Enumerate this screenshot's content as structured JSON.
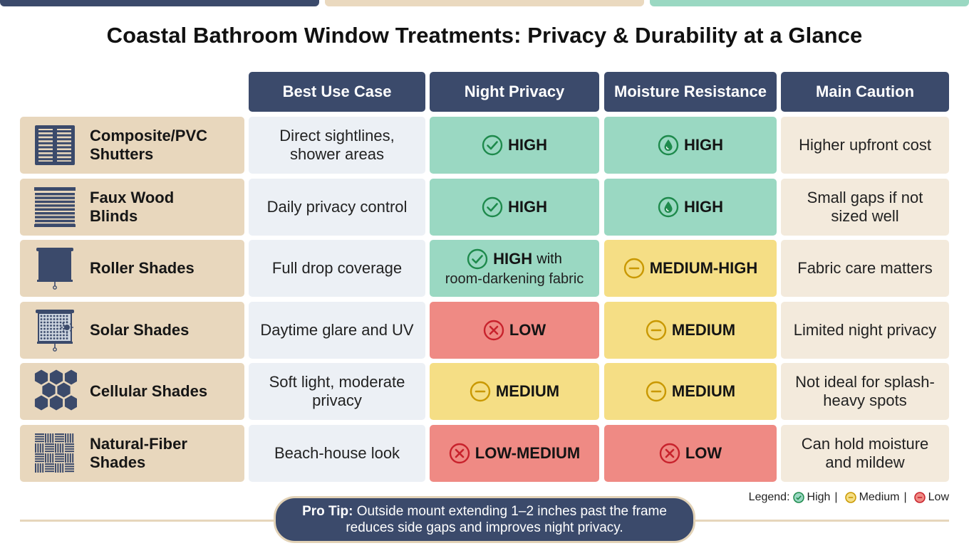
{
  "title": "Coastal Bathroom Window Treatments: Privacy & Durability at a Glance",
  "columns": [
    "Best Use Case",
    "Night Privacy",
    "Moisture Resistance",
    "Main Caution"
  ],
  "rows": [
    {
      "icon": "shutters-icon",
      "name": "Composite/PVC Shutters",
      "use": "Direct sightlines, shower areas",
      "privacy": {
        "level": "high",
        "symbol": "check",
        "label": "HIGH"
      },
      "moisture": {
        "level": "high",
        "symbol": "drop",
        "label": "HIGH"
      },
      "caution": "Higher upfront cost"
    },
    {
      "icon": "blinds-icon",
      "name": "Faux Wood Blinds",
      "use": "Daily privacy control",
      "privacy": {
        "level": "high",
        "symbol": "check",
        "label": "HIGH"
      },
      "moisture": {
        "level": "high",
        "symbol": "drop",
        "label": "HIGH"
      },
      "caution": "Small gaps if not sized well"
    },
    {
      "icon": "roller-shade-icon",
      "name": "Roller Shades",
      "use": "Full drop coverage",
      "privacy": {
        "level": "high",
        "symbol": "check",
        "label": "HIGH",
        "suffix": "with",
        "line2": "room-darkening fabric"
      },
      "moisture": {
        "level": "medium",
        "symbol": "minus",
        "label": "MEDIUM-HIGH"
      },
      "caution": "Fabric care matters"
    },
    {
      "icon": "solar-shade-icon",
      "name": "Solar Shades",
      "use": "Daytime glare and UV",
      "privacy": {
        "level": "low",
        "symbol": "x",
        "label": "LOW"
      },
      "moisture": {
        "level": "medium",
        "symbol": "minus",
        "label": "MEDIUM"
      },
      "caution": "Limited night privacy"
    },
    {
      "icon": "cellular-shade-icon",
      "name": "Cellular Shades",
      "use": "Soft light, moderate privacy",
      "privacy": {
        "level": "medium",
        "symbol": "minus",
        "label": "MEDIUM"
      },
      "moisture": {
        "level": "medium",
        "symbol": "minus",
        "label": "MEDIUM"
      },
      "caution": "Not ideal for splash-heavy spots"
    },
    {
      "icon": "woven-fiber-icon",
      "name": "Natural-Fiber Shades",
      "use": "Beach-house look",
      "privacy": {
        "level": "low",
        "symbol": "x",
        "label": "LOW-MEDIUM"
      },
      "moisture": {
        "level": "low",
        "symbol": "x",
        "label": "LOW"
      },
      "caution": "Can hold moisture and mildew"
    }
  ],
  "legend": {
    "prefix": "Legend:",
    "high": "High",
    "medium": "Medium",
    "low": "Low"
  },
  "tip": {
    "label": "Pro Tip:",
    "line1": "Outside mount extending 1–2 inches past the frame",
    "line2": "reduces side gaps and improves night privacy."
  },
  "colors": {
    "navy": "#3b4a6b",
    "beige": "#e8d7bd",
    "green": "#9ad8c2",
    "yellow": "#f5de85",
    "red": "#ef8a84",
    "symbol_green": "#1e8a4c",
    "symbol_yellow": "#c99800",
    "symbol_red": "#c8222c"
  }
}
